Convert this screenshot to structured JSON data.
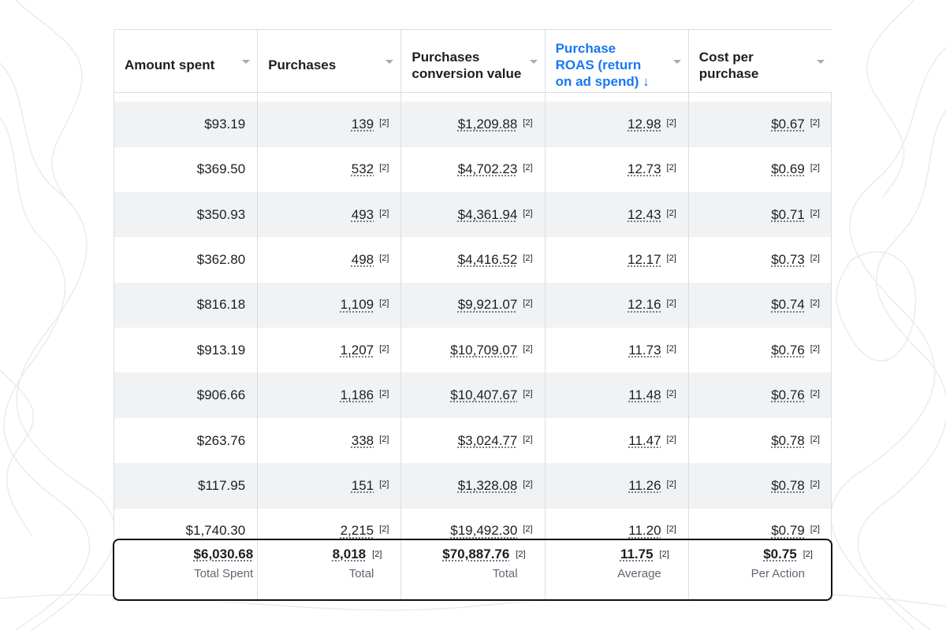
{
  "table": {
    "columns": [
      "Amount spent",
      "Purchases",
      "Purchases conversion value",
      "Purchase ROAS (return on ad spend) ↓",
      "Cost per purchase"
    ],
    "footnote": "[2]",
    "rows": [
      [
        "$93.19",
        "139",
        "$1,209.88",
        "12.98",
        "$0.67"
      ],
      [
        "$369.50",
        "532",
        "$4,702.23",
        "12.73",
        "$0.69"
      ],
      [
        "$350.93",
        "493",
        "$4,361.94",
        "12.43",
        "$0.71"
      ],
      [
        "$362.80",
        "498",
        "$4,416.52",
        "12.17",
        "$0.73"
      ],
      [
        "$816.18",
        "1,109",
        "$9,921.07",
        "12.16",
        "$0.74"
      ],
      [
        "$913.19",
        "1,207",
        "$10,709.07",
        "11.73",
        "$0.76"
      ],
      [
        "$906.66",
        "1,186",
        "$10,407.67",
        "11.48",
        "$0.76"
      ],
      [
        "$263.76",
        "338",
        "$3,024.77",
        "11.47",
        "$0.78"
      ],
      [
        "$117.95",
        "151",
        "$1,328.08",
        "11.26",
        "$0.78"
      ],
      [
        "$1,740.30",
        "2,215",
        "$19,492.30",
        "11.20",
        "$0.79"
      ]
    ],
    "totals": {
      "values": [
        "$6,030.68",
        "8,018",
        "$70,887.76",
        "11.75",
        "$0.75"
      ],
      "labels": [
        "Total Spent",
        "Total",
        "Total",
        "Average",
        "Per Action"
      ]
    }
  }
}
